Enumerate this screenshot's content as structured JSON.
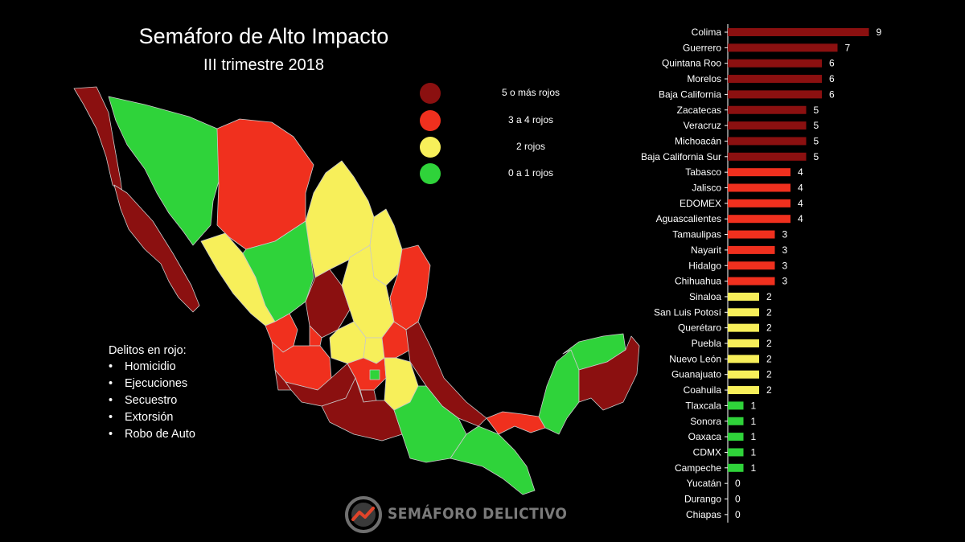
{
  "header": {
    "title": "Semáforo de Alto Impacto",
    "subtitle": "III trimestre 2018"
  },
  "legend": {
    "items": [
      {
        "label": "5 o más rojos",
        "color": "#8b1010"
      },
      {
        "label": "3 a 4 rojos",
        "color": "#f0301e"
      },
      {
        "label": "2 rojos",
        "color": "#f7ef5a"
      },
      {
        "label": "0 a 1 rojos",
        "color": "#2fd33a"
      }
    ]
  },
  "crimes": {
    "title": "Delitos en rojo:",
    "items": [
      "Homicidio",
      "Ejecuciones",
      "Secuestro",
      "Extorsión",
      "Robo de Auto"
    ]
  },
  "brand": {
    "name": "SEMÁFORO DELICTIVO"
  },
  "colors": {
    "dark_red": "#8b1010",
    "red": "#f0301e",
    "yellow": "#f7ef5a",
    "green": "#2fd33a",
    "map_border": "#c9c9c9"
  },
  "chart_data": {
    "type": "bar",
    "orientation": "horizontal",
    "title": "Semáforo de Alto Impacto",
    "subtitle": "III trimestre 2018",
    "categories": [
      "Colima",
      "Guerrero",
      "Quintana Roo",
      "Morelos",
      "Baja California",
      "Zacatecas",
      "Veracruz",
      "Michoacán",
      "Baja California Sur",
      "Tabasco",
      "Jalisco",
      "EDOMEX",
      "Aguascalientes",
      "Tamaulipas",
      "Nayarit",
      "Hidalgo",
      "Chihuahua",
      "Sinaloa",
      "San Luis Potosí",
      "Querétaro",
      "Puebla",
      "Nuevo León",
      "Guanajuato",
      "Coahuila",
      "Tlaxcala",
      "Sonora",
      "Oaxaca",
      "CDMX",
      "Campeche",
      "Yucatán",
      "Durango",
      "Chiapas"
    ],
    "values": [
      9,
      7,
      6,
      6,
      6,
      5,
      5,
      5,
      5,
      4,
      4,
      4,
      4,
      3,
      3,
      3,
      3,
      2,
      2,
      2,
      2,
      2,
      2,
      2,
      1,
      1,
      1,
      1,
      1,
      0,
      0,
      0
    ],
    "xlim": [
      0,
      9
    ],
    "grid": false,
    "legend_position": "top-center"
  }
}
